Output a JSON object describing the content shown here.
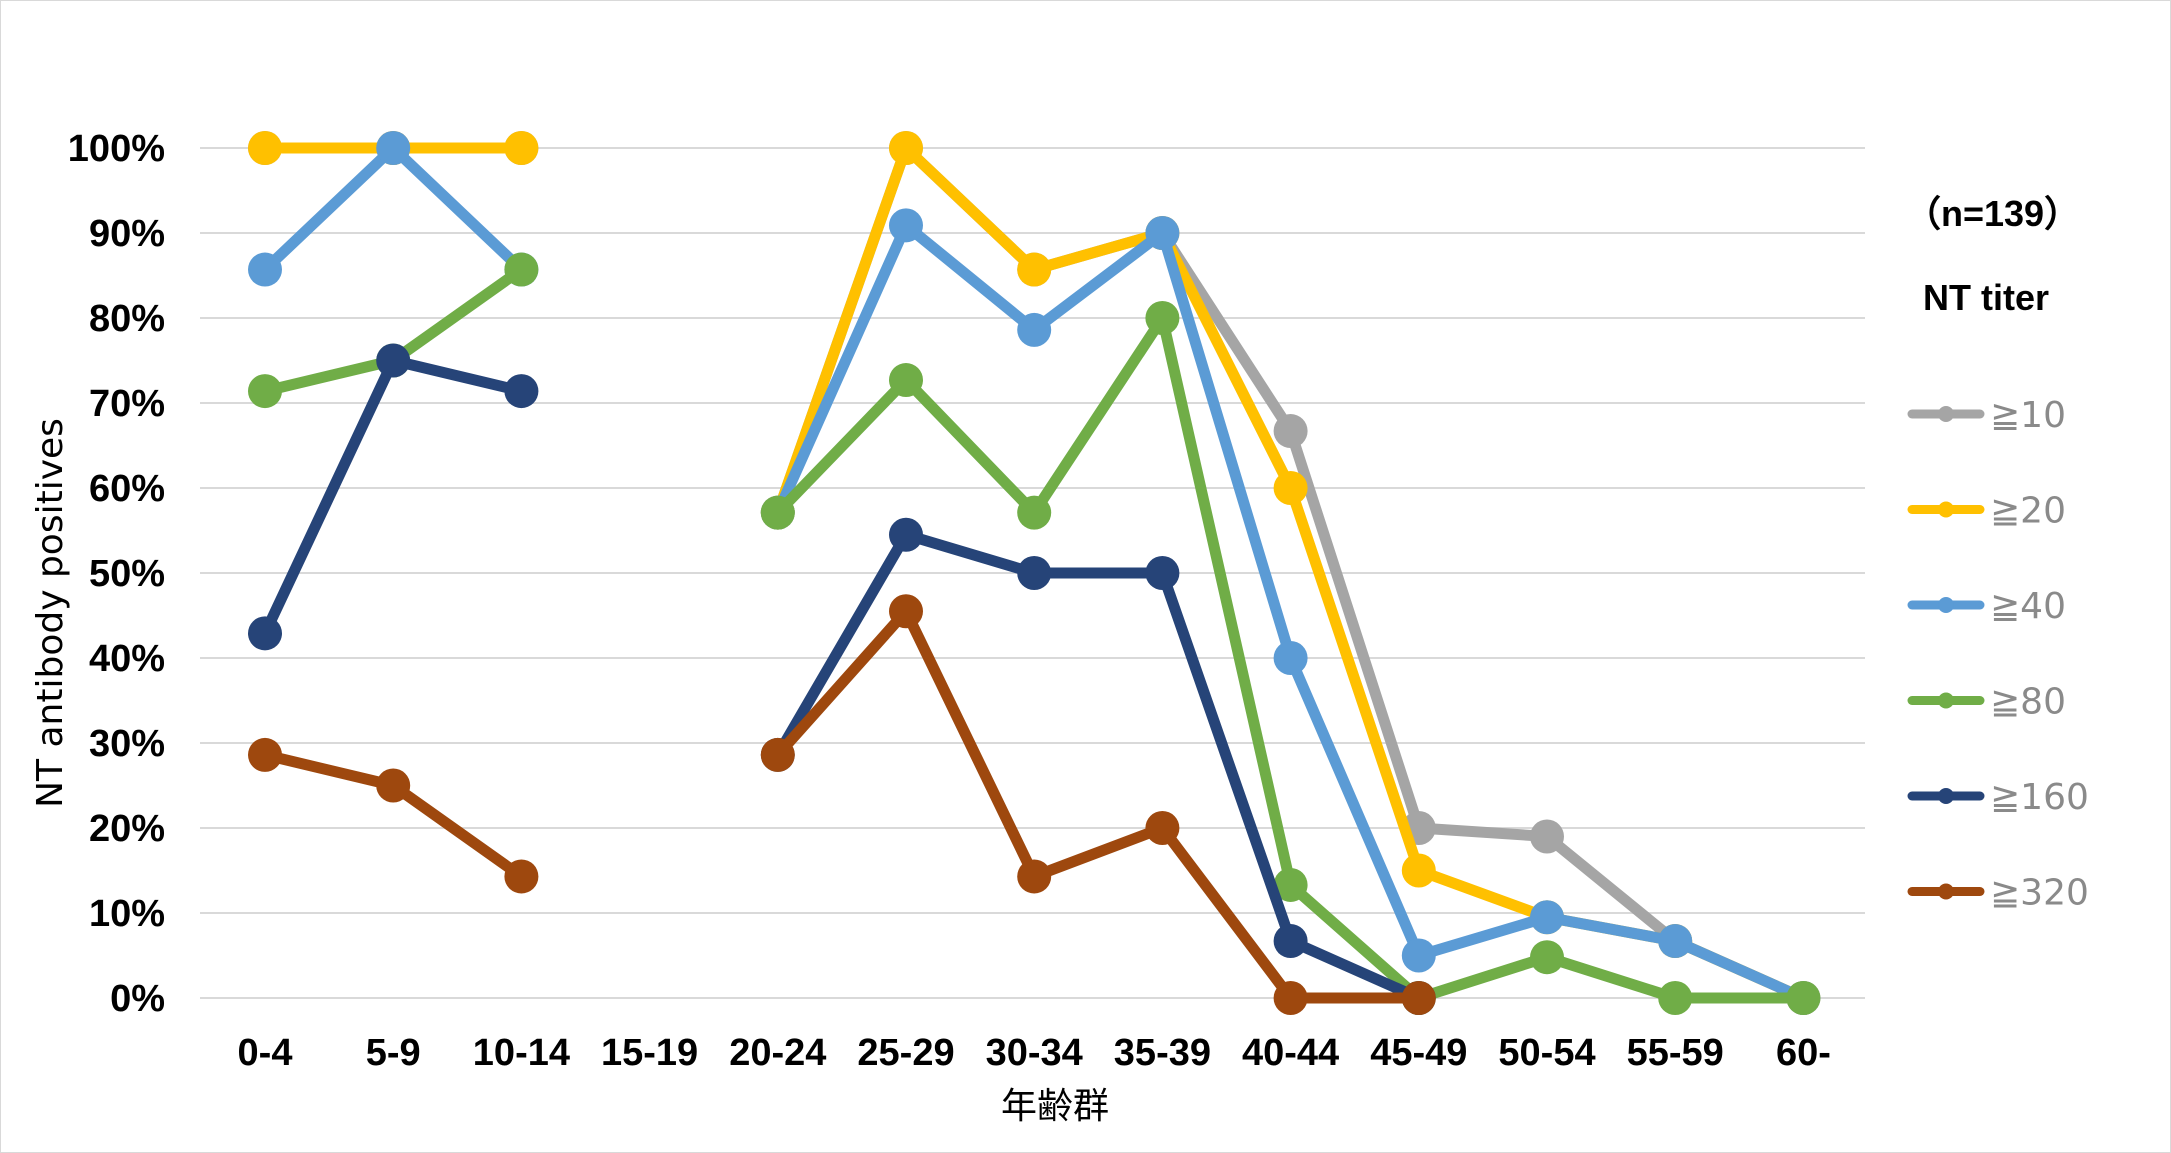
{
  "chart_data": {
    "type": "line",
    "title": "",
    "xlabel": "年齢群",
    "ylabel": "NT antibody positives",
    "categories": [
      "0-4",
      "5-9",
      "10-14",
      "15-19",
      "20-24",
      "25-29",
      "30-34",
      "35-39",
      "40-44",
      "45-49",
      "50-54",
      "55-59",
      "60-"
    ],
    "yticks": [
      "0%",
      "10%",
      "20%",
      "30%",
      "40%",
      "50%",
      "60%",
      "70%",
      "80%",
      "90%",
      "100%"
    ],
    "ylim": [
      0,
      100
    ],
    "grid": true,
    "legend_position": "right",
    "sample_note": "（n=139）",
    "legend_title": "NT titer",
    "series": [
      {
        "name": "≧10",
        "color": "#A5A5A5",
        "values": [
          100,
          100,
          100,
          null,
          57.1,
          100,
          85.7,
          90,
          66.7,
          20,
          19,
          6.7,
          0
        ]
      },
      {
        "name": "≧20",
        "color": "#FFC000",
        "values": [
          100,
          100,
          100,
          null,
          57.1,
          100,
          85.7,
          90,
          60,
          15,
          9.5,
          6.7,
          0
        ]
      },
      {
        "name": "≧40",
        "color": "#5B9BD5",
        "values": [
          85.7,
          100,
          85.7,
          null,
          57.1,
          90.9,
          78.6,
          90,
          40,
          5,
          9.5,
          6.7,
          0
        ]
      },
      {
        "name": "≧80",
        "color": "#70AD47",
        "values": [
          71.4,
          75,
          85.7,
          null,
          57.1,
          72.7,
          57.1,
          80,
          13.3,
          0,
          4.8,
          0,
          0
        ]
      },
      {
        "name": "≧160",
        "color": "#264478",
        "values": [
          42.9,
          75,
          71.4,
          null,
          28.6,
          54.5,
          50,
          50,
          6.7,
          0,
          null,
          null,
          null
        ]
      },
      {
        "name": "≧320",
        "color": "#9E480E",
        "values": [
          28.6,
          25,
          14.3,
          null,
          28.6,
          45.5,
          14.3,
          20,
          0,
          0,
          null,
          null,
          null
        ]
      }
    ]
  }
}
